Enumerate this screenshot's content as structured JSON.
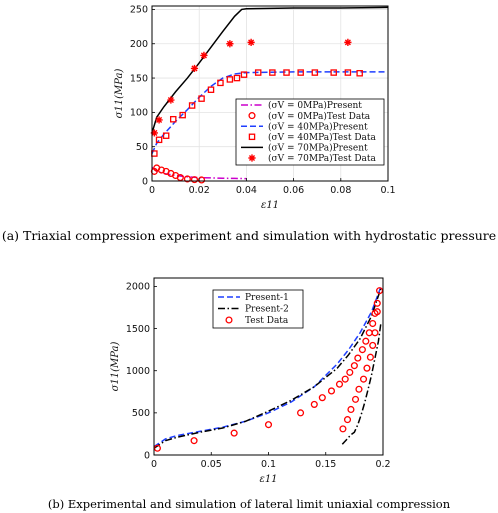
{
  "chart_data": [
    {
      "type": "line",
      "caption": "(a)  Triaxial compression experiment and simulation with hydrostatic pressure",
      "xlabel": "ε11",
      "ylabel": "σ11(MPa)",
      "xlim": [
        0,
        0.1
      ],
      "ylim": [
        0,
        255
      ],
      "xticks": [
        "0",
        "0.02",
        "0.04",
        "0.06",
        "0.08",
        "0.1"
      ],
      "yticks": [
        "0",
        "50",
        "100",
        "150",
        "200",
        "250"
      ],
      "grid": true,
      "legend_position": "center-right",
      "series": [
        {
          "name": "(σV = 0MPa)Present",
          "style": "dashdot",
          "color": "#cc00cc",
          "x": [
            0,
            0.002,
            0.005,
            0.01,
            0.015,
            0.02,
            0.025,
            0.03,
            0.035,
            0.04
          ],
          "y": [
            20,
            14,
            11,
            8,
            6,
            5,
            4.5,
            4,
            3.8,
            3.5
          ]
        },
        {
          "name": "(σV = 0MPa)Test Data",
          "style": "circle",
          "color": "#ff0000",
          "x": [
            0.001,
            0.002,
            0.004,
            0.006,
            0.008,
            0.01,
            0.012,
            0.015,
            0.018,
            0.021
          ],
          "y": [
            14,
            19,
            16,
            14,
            11,
            8,
            5,
            3,
            2,
            1.5
          ]
        },
        {
          "name": "(σV = 40MPa)Present",
          "style": "dashed",
          "color": "#1f3fff",
          "x": [
            0,
            0.002,
            0.005,
            0.01,
            0.015,
            0.02,
            0.025,
            0.03,
            0.035,
            0.04,
            0.05,
            0.06,
            0.08,
            0.1
          ],
          "y": [
            40,
            55,
            68,
            87,
            104,
            122,
            138,
            150,
            156,
            158,
            158.5,
            159,
            159,
            159
          ]
        },
        {
          "name": "(σV = 40MPa)Test Data",
          "style": "square",
          "color": "#ff0000",
          "x": [
            0.001,
            0.003,
            0.006,
            0.009,
            0.013,
            0.017,
            0.021,
            0.025,
            0.029,
            0.033,
            0.036,
            0.039,
            0.045,
            0.051,
            0.057,
            0.063,
            0.069,
            0.077,
            0.083,
            0.088
          ],
          "y": [
            40,
            60,
            66,
            90,
            96,
            110,
            120,
            133,
            143,
            148,
            150,
            155,
            158,
            158,
            158,
            158,
            158,
            158,
            158,
            157
          ]
        },
        {
          "name": "(σV = 70MPa)Present",
          "style": "solid",
          "color": "#000000",
          "x": [
            0,
            0.002,
            0.005,
            0.01,
            0.015,
            0.02,
            0.025,
            0.03,
            0.035,
            0.038,
            0.04,
            0.06,
            0.08,
            0.1
          ],
          "y": [
            70,
            93,
            108,
            130,
            150,
            172,
            195,
            218,
            240,
            250,
            251,
            252,
            252,
            253
          ]
        },
        {
          "name": "(σV = 70MPa)Test Data",
          "style": "star",
          "color": "#ff0000",
          "x": [
            0.001,
            0.003,
            0.008,
            0.018,
            0.022,
            0.033,
            0.042,
            0.083
          ],
          "y": [
            70,
            89,
            118,
            164,
            183,
            200,
            202,
            202
          ]
        }
      ]
    },
    {
      "type": "line",
      "caption": "(b) Experimental and simulation of lateral limit uniaxial compression",
      "xlabel": "ε11",
      "ylabel": "σ11(MPa)",
      "xlim": [
        0,
        0.2
      ],
      "ylim": [
        0,
        2100
      ],
      "xticks": [
        "0",
        "0.05",
        "0.1",
        "0.15",
        "0.2"
      ],
      "yticks": [
        "0",
        "500",
        "1000",
        "1500",
        "2000"
      ],
      "grid": false,
      "legend_position": "top-left",
      "series": [
        {
          "name": "Present-1",
          "style": "dashed",
          "color": "#1f3fff",
          "x": [
            0,
            0.01,
            0.02,
            0.04,
            0.06,
            0.08,
            0.1,
            0.12,
            0.14,
            0.16,
            0.17,
            0.18,
            0.19,
            0.195,
            0.198
          ],
          "y": [
            100,
            190,
            230,
            280,
            330,
            400,
            500,
            630,
            810,
            1080,
            1250,
            1450,
            1700,
            1880,
            1990
          ]
        },
        {
          "name": "Present-2",
          "style": "dashdot",
          "color": "#000000",
          "x": [
            0,
            0.01,
            0.02,
            0.04,
            0.06,
            0.08,
            0.1,
            0.12,
            0.14,
            0.16,
            0.17,
            0.18,
            0.19,
            0.195,
            0.198
          ],
          "y": [
            80,
            170,
            210,
            270,
            320,
            400,
            520,
            650,
            810,
            1030,
            1190,
            1380,
            1650,
            1850,
            1970
          ],
          "unload_x": [
            0.198,
            0.196,
            0.193,
            0.19,
            0.187,
            0.184,
            0.181,
            0.178,
            0.175,
            0.172,
            0.168,
            0.164
          ],
          "unload_y": [
            1550,
            1350,
            1150,
            950,
            780,
            620,
            480,
            360,
            270,
            240,
            180,
            120
          ]
        },
        {
          "name": "Test Data",
          "style": "circle",
          "color": "#ff0000",
          "x": [
            0.003,
            0.035,
            0.07,
            0.1,
            0.128,
            0.14,
            0.147,
            0.155,
            0.162,
            0.167,
            0.171,
            0.175,
            0.178,
            0.182,
            0.185,
            0.188,
            0.191,
            0.193,
            0.195,
            0.197,
            0.165,
            0.169,
            0.172,
            0.176,
            0.179,
            0.183,
            0.186,
            0.189,
            0.191,
            0.193,
            0.195
          ],
          "y": [
            80,
            170,
            260,
            360,
            500,
            600,
            680,
            760,
            840,
            900,
            980,
            1060,
            1150,
            1250,
            1350,
            1450,
            1560,
            1680,
            1800,
            1950,
            310,
            420,
            540,
            660,
            780,
            900,
            1030,
            1160,
            1300,
            1450,
            1700
          ]
        }
      ]
    }
  ]
}
